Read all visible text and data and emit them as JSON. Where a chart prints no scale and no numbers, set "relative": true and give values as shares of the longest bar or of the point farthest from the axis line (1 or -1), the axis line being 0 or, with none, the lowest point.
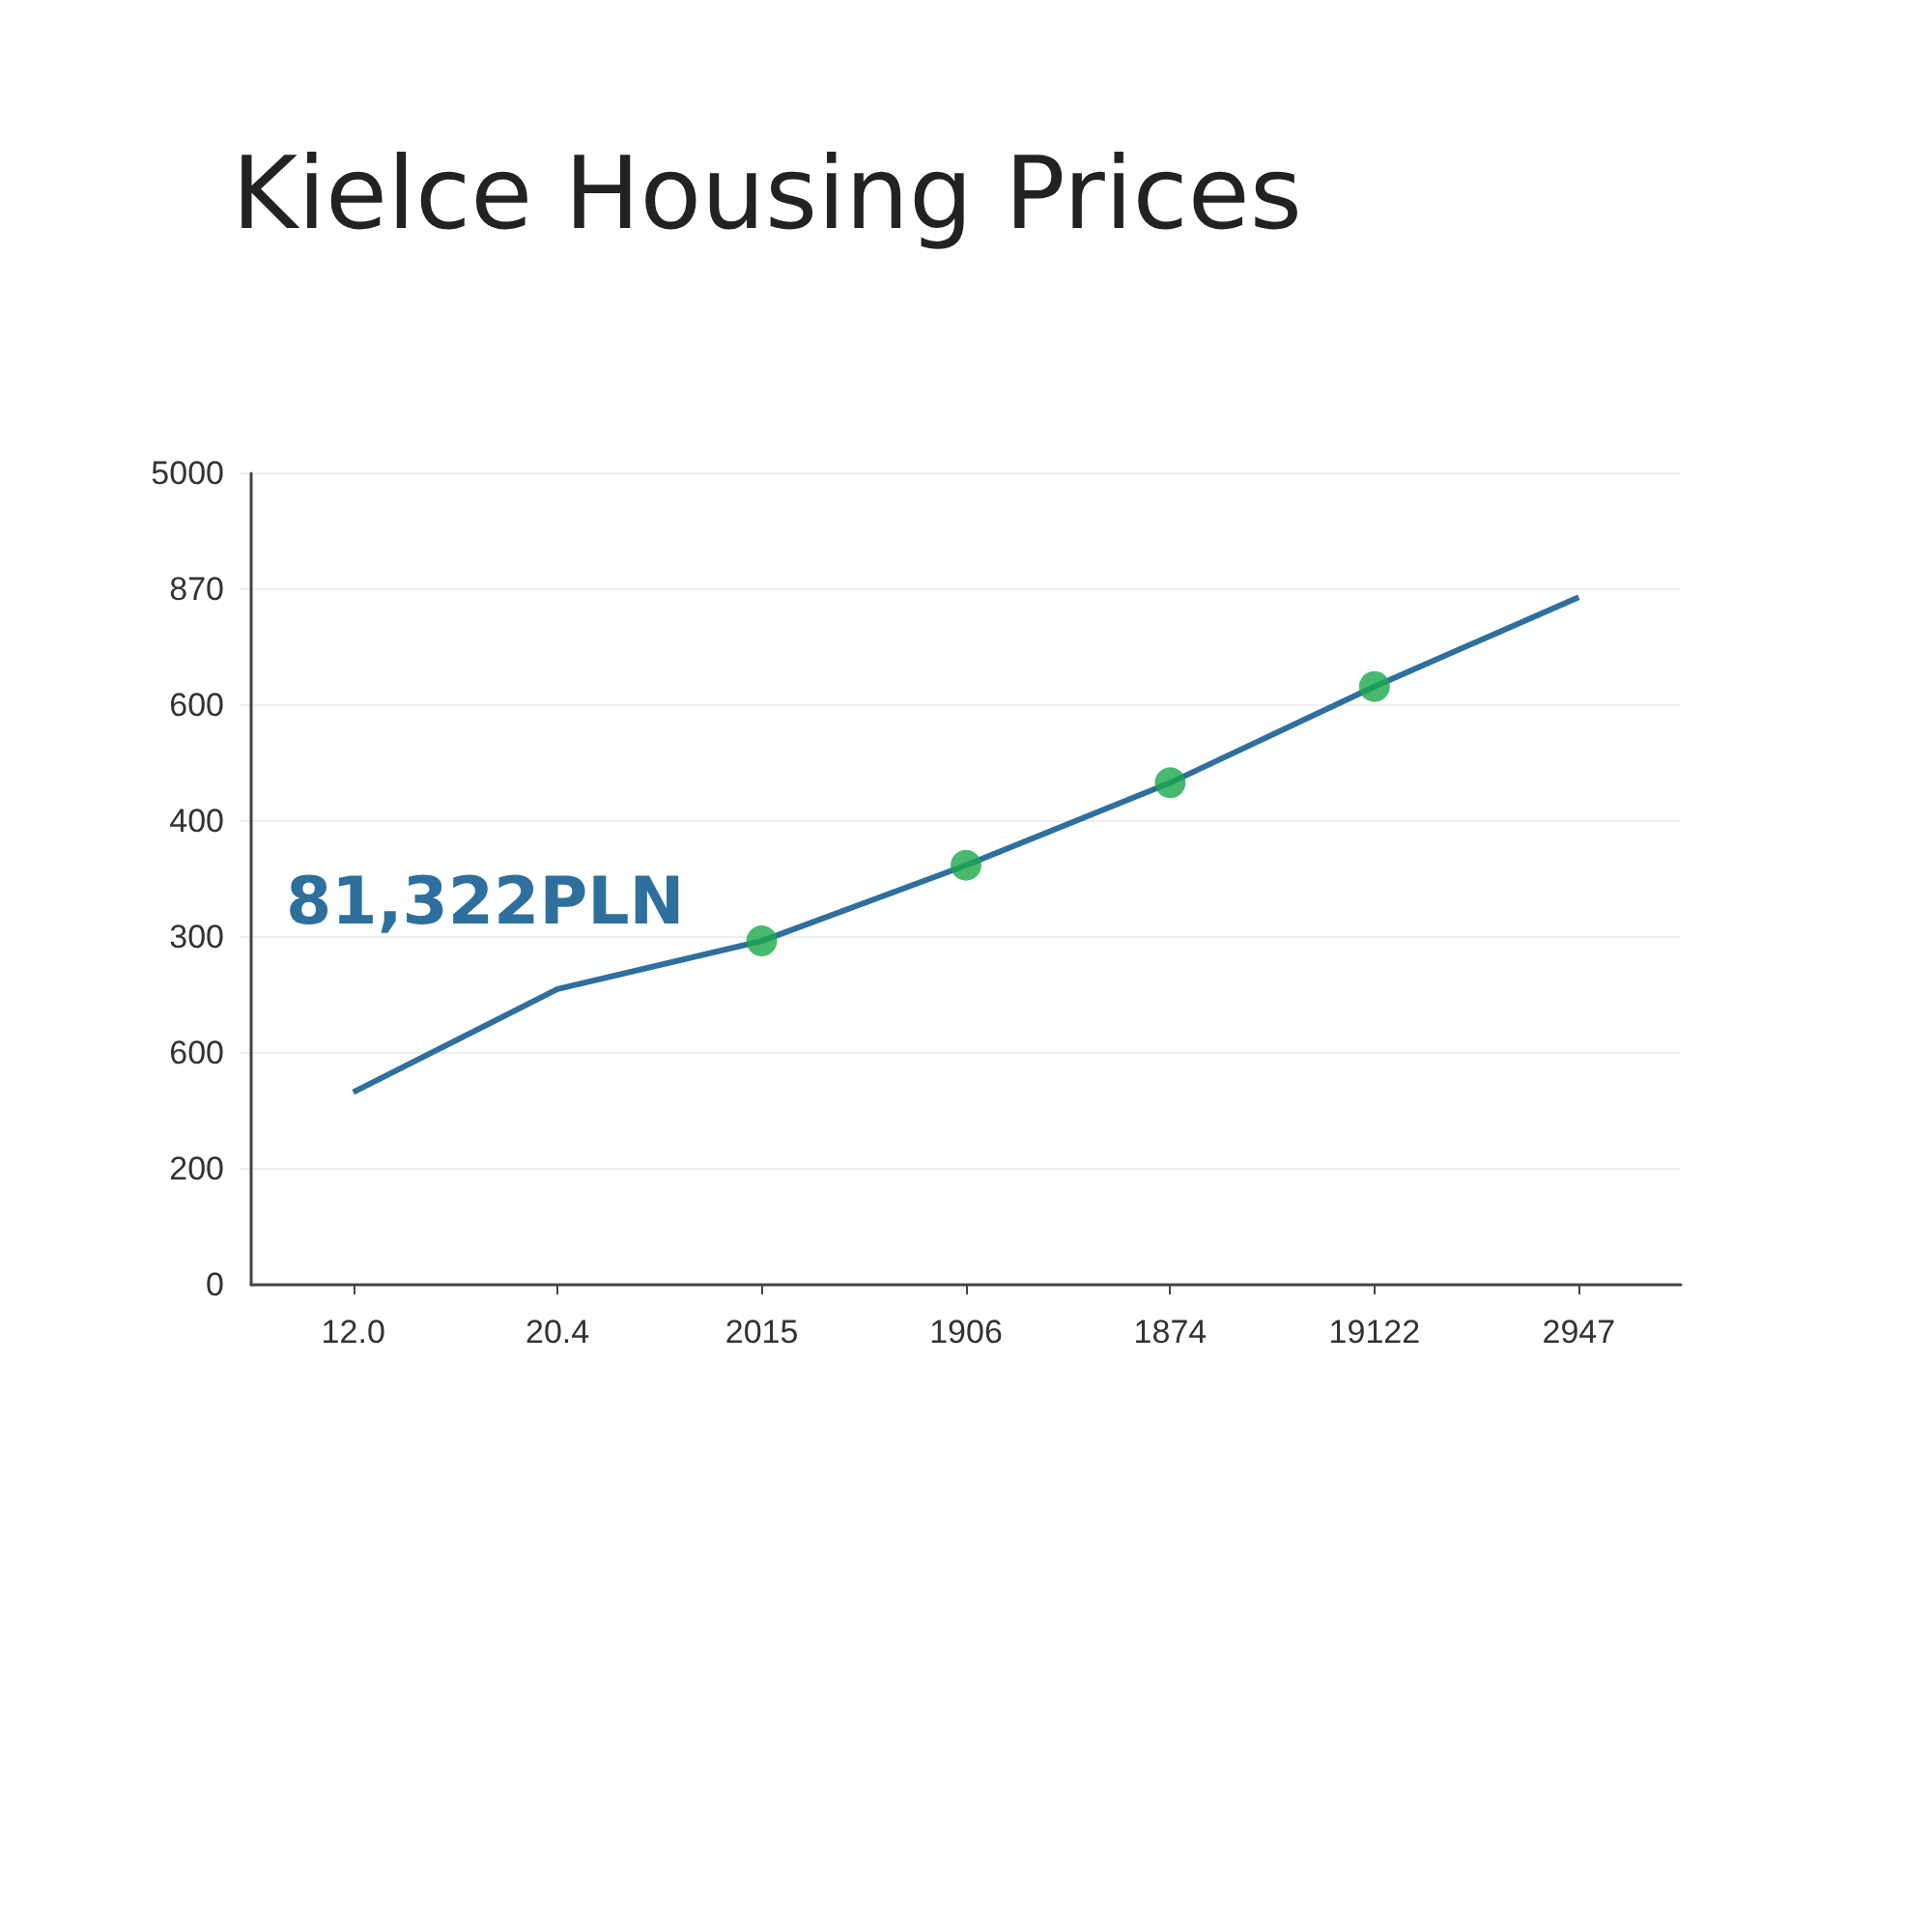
{
  "chart_data": {
    "type": "line",
    "title": "Kielce Housing Prices",
    "categories": [
      "12.0",
      "20.4",
      "2015",
      "1906",
      "1874",
      "19122",
      "2947"
    ],
    "relative": true,
    "series": [
      {
        "color": "#2e6f9e",
        "values": [
          0.28,
          0.43,
          0.5,
          0.61,
          0.73,
          0.87,
          1
        ],
        "marker": "none"
      },
      {
        "type": "scatter",
        "color": "#1aa84a",
        "values": [
          null,
          null,
          0.5,
          0.61,
          0.73,
          0.87,
          null
        ],
        "marker": "circle"
      }
    ],
    "grid": "y",
    "annotations": [
      "81,322PLN",
      "5000",
      "870",
      "600",
      "400",
      "300",
      "600",
      "200",
      "0"
    ]
  }
}
